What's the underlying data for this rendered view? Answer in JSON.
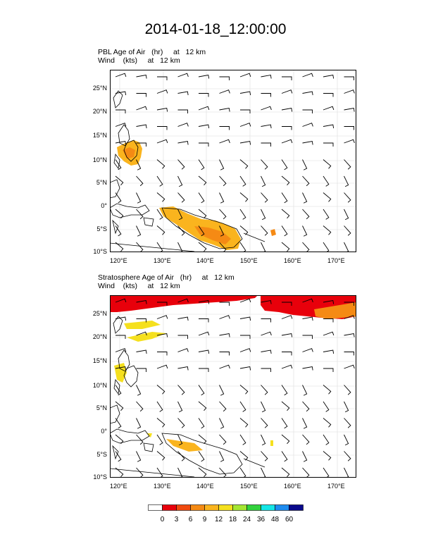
{
  "title": "2014-01-18_12:00:00",
  "panels": [
    {
      "field_line": "PBL Age of Air   (hr)     at   12 km",
      "wind_line": "Wind    (kts)     at   12 km"
    },
    {
      "field_line": "Stratosphere Age of Air   (hr)     at   12 km",
      "wind_line": "Wind    (kts)     at   12 km"
    }
  ],
  "lat_ticks": [
    "25°N",
    "20°N",
    "15°N",
    "10°N",
    "5°N",
    "0°",
    "5°S",
    "10°S"
  ],
  "lon_ticks": [
    "120°E",
    "130°E",
    "140°E",
    "150°E",
    "160°E",
    "170°E"
  ],
  "colorbar": {
    "labels": [
      "0",
      "3",
      "6",
      "9",
      "12",
      "18",
      "24",
      "36",
      "48",
      "60"
    ],
    "colors": [
      "#ffffff",
      "#e8000b",
      "#f04a0f",
      "#f58a14",
      "#fab41e",
      "#f5e01e",
      "#a5e632",
      "#32d23c",
      "#14e6e6",
      "#1e8cf0",
      "#0a0a8c"
    ]
  }
}
